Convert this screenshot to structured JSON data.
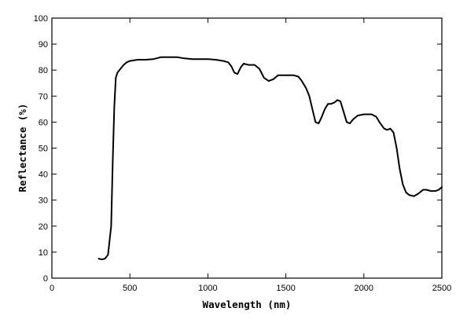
{
  "chart_data": {
    "type": "line",
    "xlabel": "Wavelength (nm)",
    "ylabel": "Reflectance (%)",
    "xlim": [
      0,
      2500
    ],
    "ylim": [
      0,
      100
    ],
    "x_ticks": [
      0,
      500,
      1000,
      1500,
      2000,
      2500
    ],
    "y_ticks": [
      0,
      10,
      20,
      30,
      40,
      50,
      60,
      70,
      80,
      90,
      100
    ],
    "grid": false,
    "legend": "none",
    "line_color": "#000000",
    "series": [
      {
        "x": [
          300,
          320,
          340,
          360,
          380,
          390,
          400,
          410,
          420,
          440,
          460,
          480,
          500,
          550,
          600,
          650,
          700,
          750,
          800,
          850,
          900,
          1000,
          1050,
          1100,
          1130,
          1150,
          1170,
          1190,
          1210,
          1230,
          1260,
          1300,
          1330,
          1360,
          1390,
          1420,
          1450,
          1480,
          1500,
          1550,
          1580,
          1600,
          1630,
          1650,
          1670,
          1690,
          1710,
          1730,
          1750,
          1770,
          1790,
          1810,
          1830,
          1850,
          1870,
          1890,
          1910,
          1930,
          1960,
          2000,
          2050,
          2080,
          2100,
          2130,
          2150,
          2170,
          2190,
          2210,
          2230,
          2250,
          2270,
          2290,
          2320,
          2350,
          2380,
          2400,
          2430,
          2460,
          2480,
          2500
        ],
        "y": [
          7.5,
          7.2,
          7.5,
          9,
          20,
          45,
          66,
          77,
          79,
          80.5,
          82,
          83,
          83.5,
          84,
          84,
          84.2,
          85,
          85,
          85,
          84.5,
          84.2,
          84.2,
          84,
          83.5,
          83,
          81.5,
          79,
          78.5,
          81,
          82.5,
          82,
          82,
          80.5,
          77,
          75.8,
          76.5,
          78,
          78,
          78,
          78,
          77.5,
          76,
          73,
          70,
          65,
          60,
          59.5,
          62,
          65,
          67,
          67,
          67.5,
          68.5,
          68,
          64,
          60,
          59.5,
          61,
          62.5,
          63,
          63,
          62,
          60,
          57.5,
          57,
          57.5,
          56,
          50,
          42,
          36,
          33,
          32,
          31.5,
          32.5,
          34,
          34,
          33.5,
          33.5,
          34,
          35
        ]
      }
    ]
  }
}
